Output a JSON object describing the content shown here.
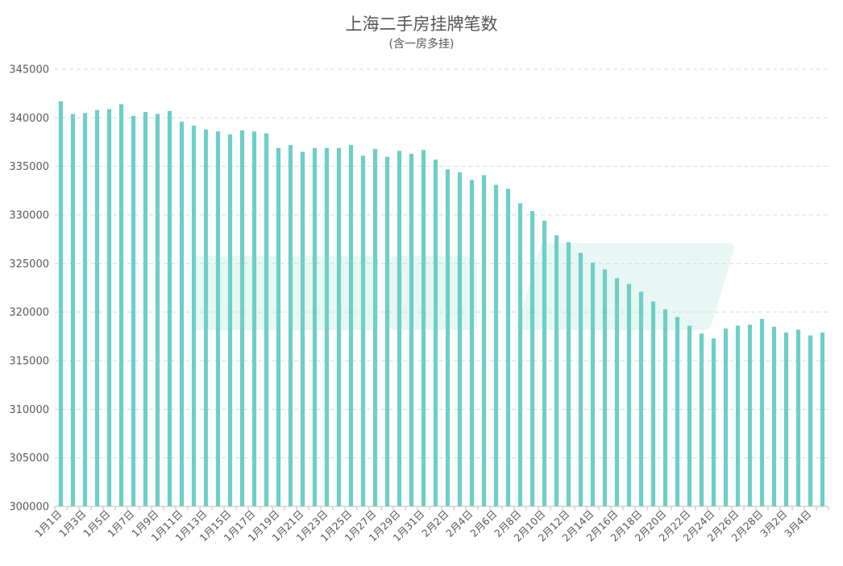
{
  "chart_data": {
    "type": "bar",
    "title": "上海二手房挂牌笔数",
    "subtitle": "(含一房多挂)",
    "color": "#6ecfc6",
    "ylim": [
      300000,
      345000
    ],
    "yticks": [
      "300000",
      "305000",
      "310000",
      "315000",
      "320000",
      "325000",
      "330000",
      "335000",
      "340000",
      "345000"
    ],
    "grid": true,
    "legend": "none",
    "categories": [
      "1月1日",
      "1月2日",
      "1月3日",
      "1月4日",
      "1月5日",
      "1月6日",
      "1月7日",
      "1月8日",
      "1月9日",
      "1月10日",
      "1月11日",
      "1月12日",
      "1月13日",
      "1月14日",
      "1月15日",
      "1月16日",
      "1月17日",
      "1月18日",
      "1月19日",
      "1月20日",
      "1月21日",
      "1月22日",
      "1月23日",
      "1月24日",
      "1月25日",
      "1月26日",
      "1月27日",
      "1月28日",
      "1月29日",
      "1月30日",
      "1月31日",
      "2月1日",
      "2月2日",
      "2月3日",
      "2月4日",
      "2月5日",
      "2月6日",
      "2月7日",
      "2月8日",
      "2月9日",
      "2月10日",
      "2月11日",
      "2月12日",
      "2月13日",
      "2月14日",
      "2月15日",
      "2月16日",
      "2月17日",
      "2月18日",
      "2月19日",
      "2月20日",
      "2月21日",
      "2月22日",
      "2月23日",
      "2月24日",
      "2月25日",
      "2月26日",
      "2月27日",
      "2月28日",
      "3月1日",
      "3月2日",
      "3月3日",
      "3月4日",
      "3月5日"
    ],
    "xticklabels": [
      "1月1日",
      "1月3日",
      "1月5日",
      "1月7日",
      "1月9日",
      "1月11日",
      "1月13日",
      "1月15日",
      "1月17日",
      "1月19日",
      "1月21日",
      "1月23日",
      "1月25日",
      "1月27日",
      "1月29日",
      "1月31日",
      "2月2日",
      "2月4日",
      "2月6日",
      "2月8日",
      "2月10日",
      "2月12日",
      "2月14日",
      "2月16日",
      "2月18日",
      "2月20日",
      "2月22日",
      "2月24日",
      "2月26日",
      "2月28日",
      "3月2日",
      "3月4日"
    ],
    "values": [
      341700,
      340400,
      340500,
      340800,
      340900,
      341400,
      340200,
      340600,
      340400,
      340700,
      339600,
      339200,
      338800,
      338600,
      338300,
      338700,
      338600,
      338400,
      336900,
      337200,
      336500,
      336900,
      336900,
      336900,
      337200,
      336100,
      336800,
      336000,
      336600,
      336300,
      336700,
      335700,
      334700,
      334400,
      333600,
      334100,
      333100,
      332700,
      331200,
      330400,
      329400,
      327900,
      327200,
      326100,
      325100,
      324400,
      323500,
      322900,
      322100,
      321100,
      320300,
      319500,
      318600,
      317800,
      317300,
      318300,
      318600,
      318700,
      319300,
      318500,
      317900,
      318200,
      317600,
      317900
    ]
  }
}
